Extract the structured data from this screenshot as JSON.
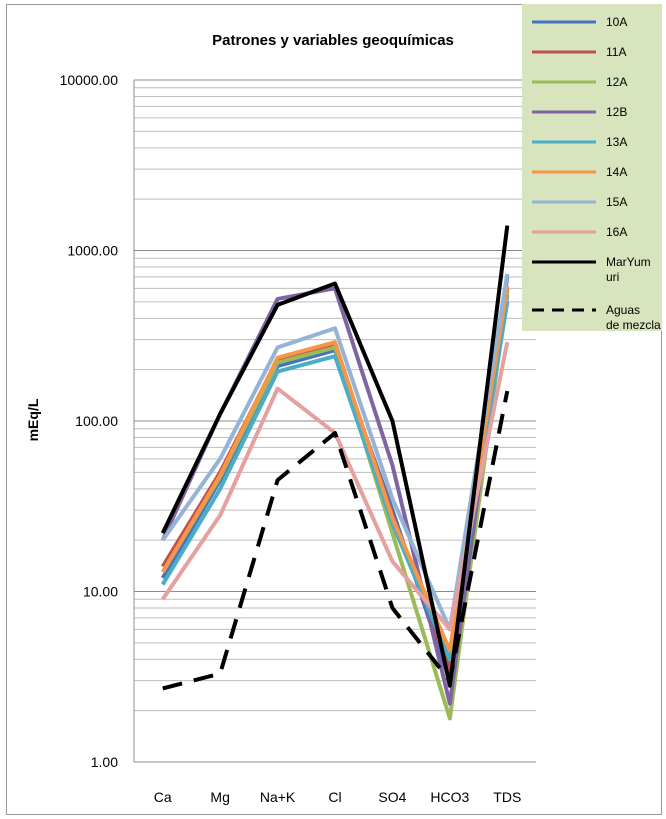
{
  "chart_data": {
    "type": "line",
    "title": "Patrones y variables geoquímicas",
    "ylabel": "mEq/L",
    "xlabel": "",
    "yscale": "log",
    "ylim": [
      1,
      10000
    ],
    "ytick_labels": [
      "1.00",
      "10.00",
      "100.00",
      "1000.00",
      "10000.00"
    ],
    "categories": [
      "Ca",
      "Mg",
      "Na+K",
      "Cl",
      "SO4",
      "HCO3",
      "TDS"
    ],
    "grid": true,
    "legend_position": "right-top",
    "series": [
      {
        "name": "10A",
        "color": "#4472C4",
        "style": "solid",
        "values": [
          12,
          45,
          210,
          260,
          30,
          3,
          550
        ]
      },
      {
        "name": "11A",
        "color": "#C0504D",
        "style": "solid",
        "values": [
          14,
          50,
          230,
          280,
          28,
          3.5,
          600
        ]
      },
      {
        "name": "12A",
        "color": "#9BBB59",
        "style": "solid",
        "values": [
          13,
          47,
          220,
          270,
          22,
          1.8,
          580
        ]
      },
      {
        "name": "12B",
        "color": "#8064A2",
        "style": "solid",
        "values": [
          20,
          110,
          520,
          600,
          55,
          2.2,
          700
        ]
      },
      {
        "name": "13A",
        "color": "#4BACC6",
        "style": "solid",
        "values": [
          11,
          40,
          195,
          240,
          25,
          4,
          500
        ]
      },
      {
        "name": "14A",
        "color": "#F79646",
        "style": "solid",
        "values": [
          13,
          48,
          235,
          290,
          27,
          4.5,
          620
        ]
      },
      {
        "name": "15A",
        "color": "#95B3D7",
        "style": "solid",
        "values": [
          20,
          60,
          270,
          350,
          35,
          6,
          730
        ]
      },
      {
        "name": "16A",
        "color": "#E6A0A0",
        "style": "solid",
        "values": [
          9,
          28,
          155,
          85,
          15,
          6,
          290
        ]
      },
      {
        "name": "MarYum uri",
        "color": "#000000",
        "style": "solid",
        "values": [
          22,
          110,
          480,
          640,
          100,
          2.8,
          1400
        ]
      },
      {
        "name": "Aguas de mezcla",
        "color": "#000000",
        "style": "dashed",
        "values": [
          2.7,
          3.3,
          45,
          85,
          8,
          3,
          150
        ]
      }
    ]
  }
}
